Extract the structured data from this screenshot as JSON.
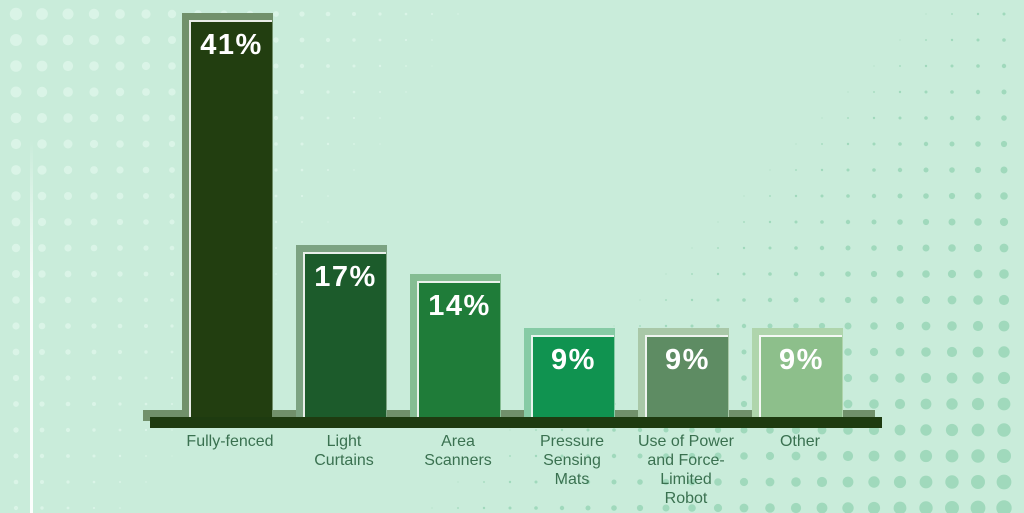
{
  "chart_data": {
    "type": "bar",
    "title": "",
    "unit": "%",
    "categories": [
      "Fully-fenced",
      "Light Curtains",
      "Area Scanners",
      "Pressure Sensing Mats",
      "Use of Power and Force-Limited Robot",
      "Other"
    ],
    "values": [
      41,
      17,
      14,
      9,
      9,
      9
    ],
    "ylim": [
      0,
      45
    ],
    "grid": false,
    "legend": false,
    "bars": [
      {
        "label": "Fully-fenced",
        "label_wrapped": "Fully-fenced",
        "value": 41,
        "value_label": "41%",
        "color": "#223e10",
        "shadow_color": "#71906b"
      },
      {
        "label": "Light Curtains",
        "label_wrapped": "Light\nCurtains",
        "value": 17,
        "value_label": "17%",
        "color": "#1c5b2b",
        "shadow_color": "#7ca382"
      },
      {
        "label": "Area Scanners",
        "label_wrapped": "Area\nScanners",
        "value": 14,
        "value_label": "14%",
        "color": "#1f7c39",
        "shadow_color": "#85bd93"
      },
      {
        "label": "Pressure Sensing Mats",
        "label_wrapped": "Pressure\nSensing\nMats",
        "value": 9,
        "value_label": "9%",
        "color": "#109350",
        "shadow_color": "#86cba5"
      },
      {
        "label": "Use of Power and Force-Limited Robot",
        "label_wrapped": "Use of Power\nand Force-\nLimited\nRobot",
        "value": 9,
        "value_label": "9%",
        "color": "#5e8c63",
        "shadow_color": "#a9c8a8"
      },
      {
        "label": "Other",
        "label_wrapped": "Other",
        "value": 9,
        "value_label": "9%",
        "color": "#8dbf8b",
        "shadow_color": "#afd5ac"
      }
    ],
    "colors": {
      "background": "#c9ecda",
      "axis": "#1e3b10",
      "axis_shadow": "#71906b",
      "category_label": "#3a7150",
      "value_label": "#ffffff",
      "dots_left": "#daf4e7",
      "dots_right": "#a0d9bc"
    }
  }
}
